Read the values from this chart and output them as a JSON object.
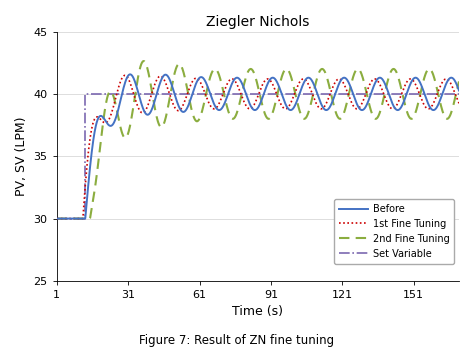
{
  "title": "Ziegler Nichols",
  "xlabel": "Time (s)",
  "ylabel": "PV, SV (LPM)",
  "caption": "Figure 7: Result of ZN fine tuning",
  "xlim": [
    1,
    170
  ],
  "ylim": [
    25,
    45
  ],
  "yticks": [
    25,
    30,
    35,
    40,
    45
  ],
  "xticks": [
    1,
    31,
    61,
    91,
    121,
    151
  ],
  "colors": {
    "before": "#4472C4",
    "fine1": "#CC0000",
    "fine2": "#8BAD3F",
    "setvar": "#7B68B0"
  },
  "step_time": 13,
  "initial_val": 30,
  "setpoint": 40,
  "n_points": 1000
}
